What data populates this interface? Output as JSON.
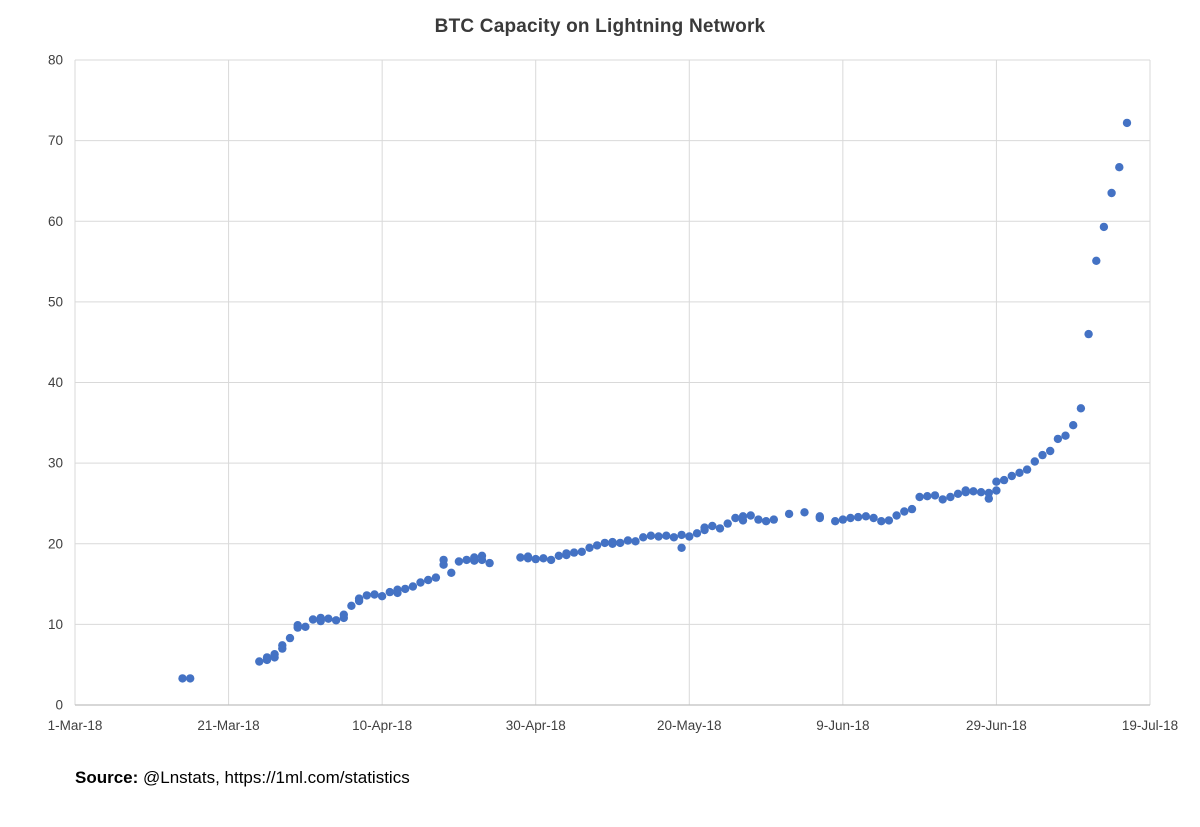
{
  "source": {
    "label": "Source:",
    "text": " @Lnstats, https://1ml.com/statistics"
  },
  "chart_data": {
    "type": "scatter",
    "title": "BTC Capacity on Lightning Network",
    "xlabel": "",
    "ylabel": "",
    "x_unit": "days since 1-Mar-18",
    "xlim": [
      0,
      140
    ],
    "ylim": [
      0,
      80
    ],
    "grid": true,
    "legend": "none",
    "point_color": "#4472c4",
    "gridline_color": "#d9d9d9",
    "axis_line_color": "#bfbfbf",
    "tick_label_color": "#404040",
    "x_tick_positions": [
      0,
      20,
      40,
      60,
      80,
      100,
      120,
      140
    ],
    "x_tick_labels": [
      "1-Mar-18",
      "21-Mar-18",
      "10-Apr-18",
      "30-Apr-18",
      "20-May-18",
      "9-Jun-18",
      "29-Jun-18",
      "19-Jul-18"
    ],
    "y_ticks": [
      0,
      10,
      20,
      30,
      40,
      50,
      60,
      70,
      80
    ],
    "points": [
      [
        14,
        3.3
      ],
      [
        15,
        3.3
      ],
      [
        24,
        5.4
      ],
      [
        25,
        5.6
      ],
      [
        25,
        5.9
      ],
      [
        26,
        6.3
      ],
      [
        26,
        5.9
      ],
      [
        27,
        7.0
      ],
      [
        27,
        7.4
      ],
      [
        28,
        8.3
      ],
      [
        29,
        9.6
      ],
      [
        29,
        9.9
      ],
      [
        30,
        9.7
      ],
      [
        31,
        10.6
      ],
      [
        32,
        10.4
      ],
      [
        32,
        10.8
      ],
      [
        33,
        10.7
      ],
      [
        34,
        10.5
      ],
      [
        35,
        10.8
      ],
      [
        35,
        11.2
      ],
      [
        36,
        12.3
      ],
      [
        37,
        12.9
      ],
      [
        37,
        13.2
      ],
      [
        38,
        13.6
      ],
      [
        39,
        13.7
      ],
      [
        40,
        13.5
      ],
      [
        41,
        14.0
      ],
      [
        42,
        13.9
      ],
      [
        42,
        14.3
      ],
      [
        43,
        14.4
      ],
      [
        44,
        14.7
      ],
      [
        45,
        15.2
      ],
      [
        46,
        15.5
      ],
      [
        47,
        15.8
      ],
      [
        48,
        17.4
      ],
      [
        48,
        18.0
      ],
      [
        49,
        16.4
      ],
      [
        50,
        17.8
      ],
      [
        51,
        18.0
      ],
      [
        52,
        17.9
      ],
      [
        52,
        18.3
      ],
      [
        53,
        18.0
      ],
      [
        53,
        18.5
      ],
      [
        54,
        17.6
      ],
      [
        58,
        18.3
      ],
      [
        59,
        18.2
      ],
      [
        59,
        18.4
      ],
      [
        60,
        18.1
      ],
      [
        61,
        18.2
      ],
      [
        62,
        18.0
      ],
      [
        63,
        18.5
      ],
      [
        64,
        18.6
      ],
      [
        64,
        18.8
      ],
      [
        65,
        18.9
      ],
      [
        66,
        19.0
      ],
      [
        67,
        19.5
      ],
      [
        68,
        19.8
      ],
      [
        69,
        20.1
      ],
      [
        70,
        20.0
      ],
      [
        70,
        20.2
      ],
      [
        71,
        20.1
      ],
      [
        72,
        20.4
      ],
      [
        73,
        20.3
      ],
      [
        74,
        20.8
      ],
      [
        75,
        21.0
      ],
      [
        76,
        20.9
      ],
      [
        77,
        21.0
      ],
      [
        78,
        20.8
      ],
      [
        79,
        19.5
      ],
      [
        79,
        21.1
      ],
      [
        80,
        20.9
      ],
      [
        81,
        21.3
      ],
      [
        82,
        21.7
      ],
      [
        82,
        22.0
      ],
      [
        83,
        22.2
      ],
      [
        84,
        21.9
      ],
      [
        85,
        22.5
      ],
      [
        86,
        23.2
      ],
      [
        87,
        22.9
      ],
      [
        87,
        23.4
      ],
      [
        88,
        23.5
      ],
      [
        89,
        23.0
      ],
      [
        90,
        22.8
      ],
      [
        91,
        23.0
      ],
      [
        93,
        23.7
      ],
      [
        95,
        23.9
      ],
      [
        97,
        23.2
      ],
      [
        97,
        23.4
      ],
      [
        99,
        22.8
      ],
      [
        100,
        23.0
      ],
      [
        101,
        23.2
      ],
      [
        102,
        23.3
      ],
      [
        103,
        23.4
      ],
      [
        104,
        23.2
      ],
      [
        105,
        22.8
      ],
      [
        106,
        22.9
      ],
      [
        107,
        23.5
      ],
      [
        108,
        24.0
      ],
      [
        109,
        24.3
      ],
      [
        110,
        25.8
      ],
      [
        111,
        25.9
      ],
      [
        112,
        26.0
      ],
      [
        113,
        25.5
      ],
      [
        114,
        25.8
      ],
      [
        115,
        26.2
      ],
      [
        116,
        26.4
      ],
      [
        116,
        26.6
      ],
      [
        117,
        26.5
      ],
      [
        118,
        26.4
      ],
      [
        119,
        25.6
      ],
      [
        119,
        26.3
      ],
      [
        120,
        26.6
      ],
      [
        120,
        27.7
      ],
      [
        121,
        27.9
      ],
      [
        122,
        28.4
      ],
      [
        123,
        28.8
      ],
      [
        124,
        29.2
      ],
      [
        125,
        30.2
      ],
      [
        126,
        31.0
      ],
      [
        127,
        31.5
      ],
      [
        128,
        33.0
      ],
      [
        129,
        33.4
      ],
      [
        130,
        34.7
      ],
      [
        131,
        36.8
      ],
      [
        132,
        46.0
      ],
      [
        133,
        55.1
      ],
      [
        134,
        59.3
      ],
      [
        135,
        63.5
      ],
      [
        136,
        66.7
      ],
      [
        137,
        72.2
      ]
    ]
  }
}
